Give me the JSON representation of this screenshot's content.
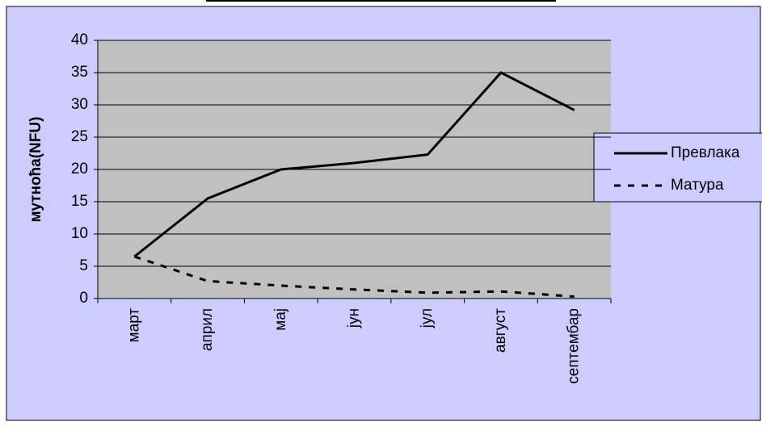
{
  "chart_data": {
    "type": "line",
    "y_label": "мутноћа(NFU)",
    "categories": [
      "март",
      "април",
      "мај",
      "јун",
      "јул",
      "август",
      "септембар"
    ],
    "series": [
      {
        "name": "Превлака",
        "color": "#000000",
        "style": "solid",
        "values": [
          6.5,
          15.5,
          20,
          21,
          22.3,
          35,
          29.2
        ]
      },
      {
        "name": "Матура",
        "color": "#000000",
        "style": "dashed",
        "values": [
          6.5,
          2.7,
          2,
          1.4,
          0.9,
          1.1,
          0.3
        ]
      }
    ],
    "ylim": [
      0,
      40
    ],
    "yticks": [
      0,
      5,
      10,
      15,
      20,
      25,
      30,
      35,
      40
    ],
    "grid": true,
    "legend": "right"
  }
}
